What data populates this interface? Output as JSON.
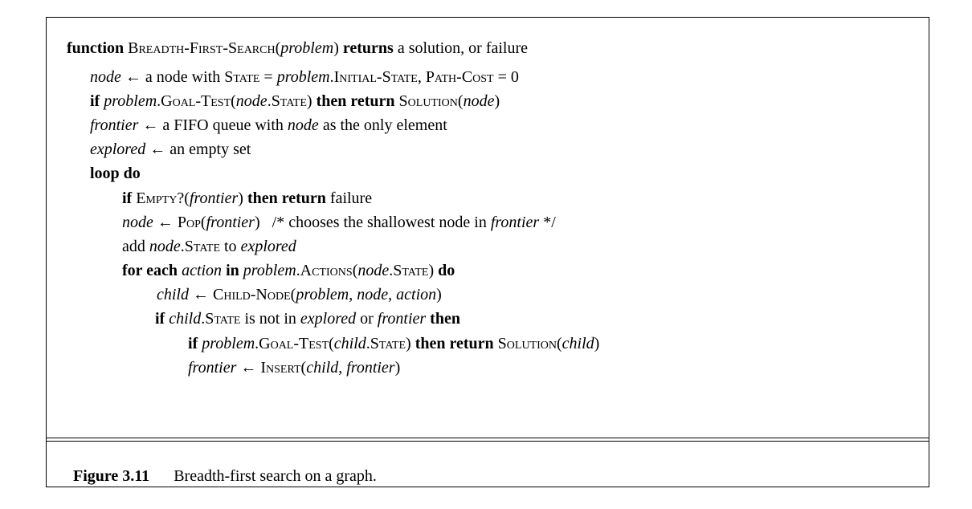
{
  "algorithm": {
    "l1": {
      "a": "function",
      "b": " ",
      "c": "Breadth-First-Search",
      "d": "(",
      "e": "problem",
      "f": ")",
      "g": " returns",
      "h": " a solution, or failure"
    },
    "l2": {
      "a": "node",
      "b": " ← a node with ",
      "c": "State",
      "d": " = ",
      "e": "problem",
      "f": ".",
      "g": "Initial-State",
      "h": ", ",
      "i": "Path-Cost",
      "j": " = 0"
    },
    "l3": {
      "a": "if",
      "b": " ",
      "c": "problem",
      "d": ".",
      "e": "Goal-Test",
      "f": "(",
      "g": "node",
      "h": ".",
      "i": "State",
      "j": ")",
      "k": " then return",
      "l": " ",
      "m": "Solution",
      "n": "(",
      "o": "node",
      "p": ")"
    },
    "l4": {
      "a": "frontier",
      "b": " ← a FIFO queue with ",
      "c": "node",
      "d": " as the only element"
    },
    "l5": {
      "a": "explored",
      "b": " ← an empty set"
    },
    "l6": {
      "a": "loop do"
    },
    "l7": {
      "a": "if",
      "b": " ",
      "c": "Empty?",
      "d": "(",
      "e": "frontier",
      "f": ")",
      "g": " then return",
      "h": " failure"
    },
    "l8": {
      "a": "node",
      "b": " ← ",
      "c": "Pop",
      "d": "(",
      "e": "frontier",
      "f": ")",
      "g": "   /* chooses the shallowest node in ",
      "h": "frontier",
      "i": " */"
    },
    "l9": {
      "a": "add ",
      "b": "node",
      "c": ".",
      "d": "State",
      "e": " to ",
      "f": "explored"
    },
    "l10": {
      "a": "for each",
      "b": " ",
      "c": "action",
      "d": " in",
      "e": " ",
      "f": "problem",
      "g": ".",
      "h": "Actions",
      "i": "(",
      "j": "node",
      "k": ".",
      "l": "State",
      "m": ")",
      "n": " do"
    },
    "l11": {
      "a": "child",
      "b": " ← ",
      "c": "Child-Node",
      "d": "(",
      "e": "problem",
      "f": ", ",
      "g": "node",
      "h": ", ",
      "i": "action",
      "j": ")"
    },
    "l12": {
      "a": "if",
      "b": " ",
      "c": "child",
      "d": ".",
      "e": "State",
      "f": " is not in ",
      "g": "explored",
      "h": " or ",
      "i": "frontier",
      "j": " then"
    },
    "l13": {
      "a": "if",
      "b": " ",
      "c": "problem",
      "d": ".",
      "e": "Goal-Test",
      "f": "(",
      "g": "child",
      "h": ".",
      "i": "State",
      "j": ")",
      "k": " then return",
      "l": " ",
      "m": "Solution",
      "n": "(",
      "o": "child",
      "p": ")"
    },
    "l14": {
      "a": "frontier",
      "b": " ← ",
      "c": "Insert",
      "d": "(",
      "e": "child",
      "f": ", ",
      "g": "frontier",
      "h": ")"
    }
  },
  "caption": {
    "label": "Figure 3.11",
    "text": "Breadth-first search on a graph."
  }
}
